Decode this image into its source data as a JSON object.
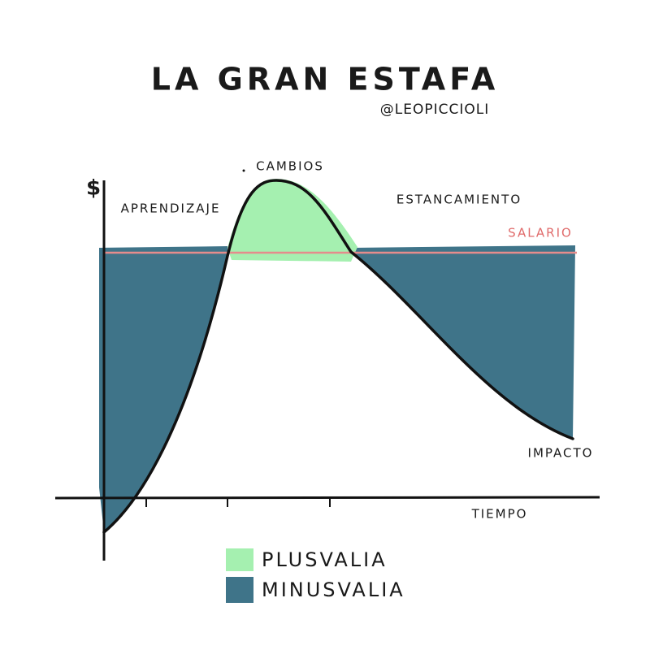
{
  "header": {
    "title": "LA GRAN ESTAFA",
    "author": "@LEOPICCIOLI"
  },
  "axes": {
    "y_label": "$",
    "x_label": "TIEMPO"
  },
  "labels": {
    "phases": [
      "APRENDIZAJE",
      "CAMBIOS",
      "ESTANCAMIENTO",
      "IMPACTO"
    ],
    "reference": "SALARIO"
  },
  "legend": {
    "items": [
      {
        "label": "PLUSVALIA"
      },
      {
        "label": "MINUSVALIA"
      }
    ]
  }
}
